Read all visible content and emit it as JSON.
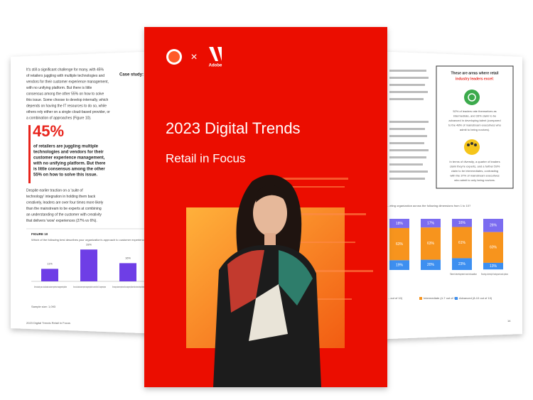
{
  "left_page": {
    "intro_lines": [
      "It's still a significant challenge for many, with 45%",
      "of retailers juggling with multiple technologies and",
      "vendors for their customer experience management,",
      "with no unifying platform. But there is little",
      "consensus among the other 55% on how to solve",
      "this issue. Some choose to develop internally, which",
      "depends on having the IT resources to do so, while",
      "others rely either on a single cloud-based provider, or",
      "a combination of approaches (Figure 10)."
    ],
    "stat": "45%",
    "stat_lines": [
      "of retailers are juggling multiple",
      "technologies and vendors for their",
      "customer experience management,",
      "with no unifying platform. But there",
      "is little consensus among the other",
      "55% on how to solve this issue."
    ],
    "body_lines": [
      "Despite earlier traction on a 'suite of",
      "technology' integration in holding them back",
      "creatively, leaders are over four times more likely",
      "than the mainstream to be experts at combining",
      "an understanding of the customer with creativity",
      "that delivers 'wow' experiences (27% vs 6%)."
    ],
    "case_study": "Case study: H",
    "figure_label": "FIGURE 10",
    "figure_question": "Which of the following best describes your organization's approach to customer experience...",
    "figure_values": [
      11,
      28,
      16
    ],
    "figure_value_labels": [
      "11%",
      "28%",
      "16%"
    ],
    "figure_captions": [
      "We exclusively use a cloud-based customer experience management platform",
      "We use a cloud-based customer experience management platform in concert with other CX management systems",
      "We manage customer experience with a management platform that we have developed internally"
    ],
    "sample_size": "Sample size: 1,093",
    "footer": "2023 Digital Trends Retail in Focus"
  },
  "cover": {
    "logo": "Adobe",
    "separator": "×",
    "title": "2023 Digital Trends",
    "subtitle": "Retail in Focus"
  },
  "right_page": {
    "box_title": "These are areas where retail",
    "box_title_highlight": "industry leaders excel:",
    "box_text_1": [
      "52% of leaders rate themselves as",
      "intermediate, and 33% claim to be",
      "advanced in developing talent (compared",
      "to the 48% of mainstream executives who",
      "admit to being novices)."
    ],
    "box_text_2": [
      "In terms of diversity, a quarter of leaders",
      "claim they're experts, and a further 59%",
      "claim to be intermediates, contrasting",
      "with the 37% of mainstream executives",
      "who admit to only being novices."
    ],
    "chart_question": "...eting organization across the following dimensions from 1 to 10?",
    "columns": [
      {
        "values": [
          18,
          63,
          19
        ],
        "value_labels": [
          "18%",
          "63%",
          "19%"
        ]
      },
      {
        "values": [
          17,
          63,
          20
        ],
        "value_labels": [
          "17%",
          "63%",
          "20%"
        ]
      },
      {
        "values": [
          16,
          61,
          23
        ],
        "value_labels": [
          "16%",
          "61%",
          "23%"
        ]
      },
      {
        "values": [
          26,
          60,
          13
        ],
        "value_labels": [
          "26%",
          "60%",
          "13%"
        ]
      }
    ],
    "column_captions": [
      "Talent development and education",
      "Ensuring a diversity of backgrounds and opinions"
    ],
    "legend": [
      "...out of 10)",
      "Intermediate (4-7 out of 10)",
      "Advanced (8-10 out of 10)"
    ],
    "page_number": "14"
  }
}
